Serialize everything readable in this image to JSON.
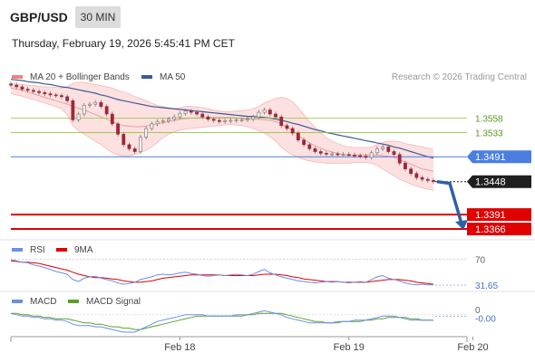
{
  "header": {
    "pair": "GBP/USD",
    "timeframe": "30 MIN",
    "timestamp": "Thursday, February 19, 2026 5:45:41 PM CET",
    "credit": "Research © 2026 Trading Central"
  },
  "colors": {
    "bollinger": "#f08080",
    "bollinger_fill": "#fde0e0",
    "ma20": "#e8a0a0",
    "ma50": "#3d5a99",
    "candle_up": "#f0f0f0",
    "candle_down": "#a0263a",
    "candle_wick": "#777777",
    "resistance": "#8dc63f",
    "pivot": "#4a7fe0",
    "support": "#e00000",
    "last_price": "#1f1f1f",
    "arrow": "#2f5fa8",
    "rsi": "#6b8ee8",
    "rsi_ma": "#e00000",
    "macd": "#6b8ee8",
    "macd_signal": "#5aa02c"
  },
  "chart_data": [
    {
      "type": "candlestick",
      "legend": [
        {
          "name": "MA 20 + Bollinger Bands",
          "color": "#f08080"
        },
        {
          "name": "MA 50",
          "color": "#3d5a99"
        }
      ],
      "x_ticks": [
        "Feb 18",
        "Feb 19",
        "Feb 20"
      ],
      "x_tick_index": [
        30,
        60,
        82
      ],
      "ylim": [
        1.3352,
        1.3648
      ],
      "levels": [
        {
          "label": "1.3558",
          "value": 1.3558,
          "kind": "resistance"
        },
        {
          "label": "1.3533",
          "value": 1.3533,
          "kind": "resistance"
        },
        {
          "label": "1.3491",
          "value": 1.3491,
          "kind": "pivot"
        },
        {
          "label": "1.3448",
          "value": 1.3448,
          "kind": "last"
        },
        {
          "label": "1.3391",
          "value": 1.3391,
          "kind": "support"
        },
        {
          "label": "1.3366",
          "value": 1.3366,
          "kind": "support"
        }
      ],
      "close": [
        1.3615,
        1.3612,
        1.3608,
        1.3606,
        1.3604,
        1.3602,
        1.36,
        1.3598,
        1.3597,
        1.3595,
        1.3588,
        1.3555,
        1.3565,
        1.358,
        1.3582,
        1.3585,
        1.3578,
        1.3565,
        1.3548,
        1.353,
        1.3512,
        1.3505,
        1.35,
        1.3525,
        1.354,
        1.3548,
        1.3552,
        1.3553,
        1.3556,
        1.356,
        1.3566,
        1.357,
        1.3568,
        1.3565,
        1.356,
        1.3556,
        1.3554,
        1.3552,
        1.3553,
        1.3554,
        1.3555,
        1.3555,
        1.3556,
        1.356,
        1.3568,
        1.3572,
        1.3565,
        1.356,
        1.3545,
        1.354,
        1.3532,
        1.352,
        1.3512,
        1.3505,
        1.35,
        1.3497,
        1.3496,
        1.3496,
        1.3495,
        1.3495,
        1.3494,
        1.3493,
        1.3492,
        1.349,
        1.3498,
        1.3505,
        1.3508,
        1.35,
        1.3495,
        1.348,
        1.347,
        1.3462,
        1.3455,
        1.3452,
        1.345,
        1.3448
      ],
      "ma20": [
        1.361,
        1.3608,
        1.3606,
        1.3603,
        1.36,
        1.3597,
        1.3594,
        1.3591,
        1.3588,
        1.3585,
        1.3582,
        1.3578,
        1.3575,
        1.3572,
        1.3568,
        1.3564,
        1.356,
        1.3556,
        1.3552,
        1.3548,
        1.3545,
        1.3544,
        1.3543,
        1.3543,
        1.3544,
        1.3546,
        1.3548,
        1.355,
        1.3552,
        1.3554,
        1.3556,
        1.3557,
        1.3558,
        1.3558,
        1.3559,
        1.3559,
        1.3559,
        1.3559,
        1.3559,
        1.3559,
        1.3558,
        1.3557,
        1.3556,
        1.3556,
        1.3556,
        1.3555,
        1.3554,
        1.3552,
        1.3548,
        1.3543,
        1.3536,
        1.3528,
        1.3521,
        1.3515,
        1.351,
        1.3506,
        1.3502,
        1.3499,
        1.3497,
        1.3495,
        1.3494,
        1.3494,
        1.3494,
        1.3494,
        1.3494,
        1.3494,
        1.3493,
        1.3492,
        1.349,
        1.3486,
        1.3482,
        1.3478,
        1.3474,
        1.347,
        1.3468,
        1.3466
      ],
      "bb_upper": [
        1.3618,
        1.3617,
        1.3616,
        1.3615,
        1.3614,
        1.3613,
        1.3612,
        1.3612,
        1.3611,
        1.361,
        1.3612,
        1.3618,
        1.362,
        1.362,
        1.3618,
        1.3616,
        1.3614,
        1.3612,
        1.361,
        1.3606,
        1.3603,
        1.36,
        1.3595,
        1.3592,
        1.3588,
        1.3584,
        1.358,
        1.3578,
        1.3576,
        1.3575,
        1.3576,
        1.3578,
        1.3578,
        1.3577,
        1.3576,
        1.3574,
        1.3572,
        1.357,
        1.3569,
        1.3569,
        1.357,
        1.3571,
        1.3572,
        1.3574,
        1.3578,
        1.3584,
        1.3588,
        1.3592,
        1.3594,
        1.3592,
        1.3586,
        1.3576,
        1.3564,
        1.3552,
        1.3542,
        1.3532,
        1.3524,
        1.3518,
        1.3514,
        1.351,
        1.3508,
        1.3507,
        1.3507,
        1.3507,
        1.3508,
        1.3512,
        1.3516,
        1.3518,
        1.3518,
        1.3517,
        1.3514,
        1.3512,
        1.351,
        1.3508,
        1.3506,
        1.3504
      ],
      "bb_lower": [
        1.36,
        1.3598,
        1.3596,
        1.3593,
        1.359,
        1.3587,
        1.3584,
        1.3581,
        1.3578,
        1.3574,
        1.3564,
        1.3545,
        1.3536,
        1.353,
        1.3524,
        1.3518,
        1.3512,
        1.3505,
        1.3498,
        1.3494,
        1.3492,
        1.3493,
        1.3495,
        1.3498,
        1.3502,
        1.3508,
        1.3516,
        1.3524,
        1.353,
        1.3534,
        1.3537,
        1.3539,
        1.354,
        1.3541,
        1.3542,
        1.3543,
        1.3544,
        1.3545,
        1.3546,
        1.3547,
        1.3546,
        1.3545,
        1.3543,
        1.354,
        1.3536,
        1.3532,
        1.3526,
        1.3518,
        1.3508,
        1.35,
        1.3494,
        1.349,
        1.3486,
        1.3484,
        1.3482,
        1.3481,
        1.348,
        1.348,
        1.348,
        1.348,
        1.348,
        1.3481,
        1.3481,
        1.3481,
        1.348,
        1.3476,
        1.347,
        1.3464,
        1.3458,
        1.3452,
        1.3448,
        1.3444,
        1.344,
        1.3437,
        1.3435,
        1.3433
      ],
      "ma50": [
        1.3625,
        1.3624,
        1.3623,
        1.3621,
        1.362,
        1.3619,
        1.3617,
        1.3616,
        1.3614,
        1.3612,
        1.3611,
        1.3609,
        1.3607,
        1.3605,
        1.3603,
        1.3601,
        1.3598,
        1.3596,
        1.3593,
        1.359,
        1.3588,
        1.3586,
        1.3584,
        1.3582,
        1.358,
        1.3578,
        1.3577,
        1.3576,
        1.3575,
        1.3574,
        1.3573,
        1.3572,
        1.3571,
        1.357,
        1.3569,
        1.3568,
        1.3567,
        1.3566,
        1.3565,
        1.3564,
        1.3563,
        1.3562,
        1.3561,
        1.3561,
        1.356,
        1.3559,
        1.3558,
        1.3556,
        1.3554,
        1.3552,
        1.3549,
        1.3547,
        1.3544,
        1.3541,
        1.3538,
        1.3536,
        1.3533,
        1.3531,
        1.3529,
        1.3527,
        1.3525,
        1.3523,
        1.3521,
        1.3519,
        1.3517,
        1.3515,
        1.3513,
        1.3511,
        1.3508,
        1.3506,
        1.3503,
        1.35,
        1.3497,
        1.3494,
        1.3491,
        1.3489
      ],
      "projection": [
        [
          1.3448,
          1.3445
        ],
        [
          1.3445,
          1.3366
        ]
      ]
    },
    {
      "type": "line",
      "legend": [
        {
          "name": "RSI",
          "color": "#6b8ee8"
        },
        {
          "name": "9MA",
          "color": "#e00000"
        }
      ],
      "ylim": [
        25,
        75
      ],
      "ref_lines": [
        {
          "label": "70",
          "value": 70
        }
      ],
      "value_labels": [
        {
          "label": "31.65",
          "value": 31.65
        }
      ],
      "series": [
        {
          "name": "RSI",
          "values": [
            70,
            68,
            66,
            65,
            62,
            60,
            58,
            55,
            52,
            50,
            48,
            40,
            37,
            42,
            44,
            45,
            42,
            40,
            38,
            35,
            33,
            34,
            36,
            40,
            42,
            44,
            47,
            48,
            47,
            48,
            50,
            51,
            49,
            48,
            46,
            45,
            46,
            47,
            46,
            47,
            48,
            47,
            46,
            48,
            52,
            55,
            50,
            47,
            44,
            42,
            40,
            38,
            37,
            36,
            35,
            36,
            37,
            36,
            37,
            36,
            35,
            36,
            37,
            36,
            40,
            44,
            46,
            42,
            40,
            38,
            35,
            33,
            32,
            33,
            32,
            32
          ]
        },
        {
          "name": "9MA",
          "values": [
            68,
            67,
            66,
            66,
            65,
            64,
            62,
            60,
            58,
            56,
            54,
            51,
            48,
            46,
            44,
            43,
            43,
            42,
            41,
            40,
            38,
            37,
            36,
            36,
            37,
            38,
            40,
            42,
            43,
            44,
            45,
            46,
            47,
            47,
            47,
            47,
            47,
            47,
            46,
            46,
            46,
            46,
            46,
            46,
            47,
            48,
            48,
            48,
            47,
            46,
            44,
            43,
            41,
            40,
            39,
            38,
            37,
            37,
            37,
            36,
            36,
            36,
            36,
            36,
            37,
            38,
            39,
            40,
            40,
            40,
            39,
            38,
            36,
            35,
            34,
            33
          ]
        }
      ]
    },
    {
      "type": "line",
      "legend": [
        {
          "name": "MACD",
          "color": "#6b8ee8"
        },
        {
          "name": "MACD Signal",
          "color": "#5aa02c"
        }
      ],
      "ylim": [
        -0.0015,
        0.0008
      ],
      "ref_lines": [
        {
          "label": "0",
          "value": 0
        }
      ],
      "value_labels": [
        {
          "label": "-0.00",
          "value": -0.0001
        }
      ],
      "series": [
        {
          "name": "MACD",
          "values": [
            0.0001,
            0.0,
            -0.0001,
            -0.0001,
            -0.0002,
            -0.0002,
            -0.0003,
            -0.0003,
            -0.0004,
            -0.0004,
            -0.0005,
            -0.0007,
            -0.0008,
            -0.0008,
            -0.0008,
            -0.0009,
            -0.0009,
            -0.001,
            -0.0011,
            -0.0012,
            -0.0013,
            -0.0013,
            -0.0013,
            -0.0011,
            -0.0009,
            -0.0007,
            -0.0005,
            -0.0004,
            -0.0003,
            -0.0002,
            -0.0001,
            0.0,
            0.0,
            0.0,
            0.0,
            -0.0001,
            -0.0001,
            -0.0001,
            -0.0001,
            -0.0001,
            0.0,
            0.0,
            0.0,
            0.0001,
            0.0002,
            0.0003,
            0.0002,
            0.0001,
            0.0,
            -0.0002,
            -0.0003,
            -0.0004,
            -0.0005,
            -0.0006,
            -0.0006,
            -0.0006,
            -0.0006,
            -0.0006,
            -0.0005,
            -0.0005,
            -0.0005,
            -0.0004,
            -0.0004,
            -0.0004,
            -0.0003,
            -0.0002,
            -0.0001,
            -0.0001,
            -0.0001,
            -0.0002,
            -0.0003,
            -0.0004,
            -0.0004,
            -0.0004,
            -0.0004,
            -0.0004
          ]
        },
        {
          "name": "MACD Signal",
          "values": [
            0.0001,
            0.0001,
            0.0,
            0.0,
            -0.0001,
            -0.0001,
            -0.0002,
            -0.0002,
            -0.0003,
            -0.0003,
            -0.0003,
            -0.0004,
            -0.0005,
            -0.0006,
            -0.0006,
            -0.0007,
            -0.0007,
            -0.0008,
            -0.0009,
            -0.0009,
            -0.001,
            -0.001,
            -0.0011,
            -0.0011,
            -0.001,
            -0.0009,
            -0.0008,
            -0.0007,
            -0.0006,
            -0.0005,
            -0.0004,
            -0.0003,
            -0.0002,
            -0.0001,
            -0.0001,
            -0.0001,
            -0.0001,
            -0.0001,
            -0.0001,
            -0.0001,
            -0.0001,
            -0.0001,
            0.0,
            0.0,
            0.0001,
            0.0001,
            0.0001,
            0.0001,
            0.0001,
            0.0,
            -0.0001,
            -0.0002,
            -0.0003,
            -0.0004,
            -0.0005,
            -0.0005,
            -0.0006,
            -0.0006,
            -0.0006,
            -0.0005,
            -0.0005,
            -0.0005,
            -0.0005,
            -0.0004,
            -0.0004,
            -0.0003,
            -0.0003,
            -0.0002,
            -0.0002,
            -0.0002,
            -0.0002,
            -0.0003,
            -0.0003,
            -0.0004,
            -0.0004,
            -0.0004
          ]
        }
      ]
    }
  ]
}
